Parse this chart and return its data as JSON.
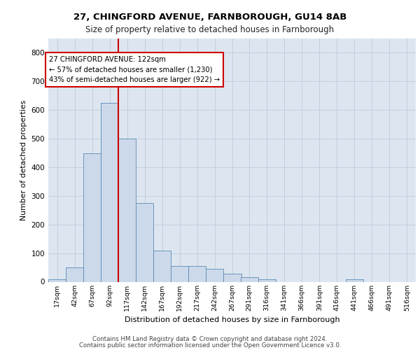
{
  "title1": "27, CHINGFORD AVENUE, FARNBOROUGH, GU14 8AB",
  "title2": "Size of property relative to detached houses in Farnborough",
  "xlabel": "Distribution of detached houses by size in Farnborough",
  "ylabel": "Number of detached properties",
  "footer1": "Contains HM Land Registry data © Crown copyright and database right 2024.",
  "footer2": "Contains public sector information licensed under the Open Government Licence v3.0.",
  "bar_color": "#ccd9ea",
  "bar_edgecolor": "#5a8ab5",
  "grid_color": "#c0cfe0",
  "background_color": "#dde6f0",
  "annotation_line1": "27 CHINGFORD AVENUE: 122sqm",
  "annotation_line2": "← 57% of detached houses are smaller (1,230)",
  "annotation_line3": "43% of semi-detached houses are larger (922) →",
  "annotation_box_color": "#ffffff",
  "annotation_box_edgecolor": "#cc0000",
  "vline_color": "#cc0000",
  "vline_x_bin": 4,
  "categories": [
    "17sqm",
    "42sqm",
    "67sqm",
    "92sqm",
    "117sqm",
    "142sqm",
    "167sqm",
    "192sqm",
    "217sqm",
    "242sqm",
    "267sqm",
    "291sqm",
    "316sqm",
    "341sqm",
    "366sqm",
    "391sqm",
    "416sqm",
    "441sqm",
    "466sqm",
    "491sqm",
    "516sqm"
  ],
  "bin_starts": [
    17,
    42,
    67,
    92,
    117,
    142,
    167,
    192,
    217,
    242,
    267,
    291,
    316,
    341,
    366,
    391,
    416,
    441,
    466,
    491,
    516
  ],
  "bin_width": 25,
  "values": [
    8,
    50,
    450,
    625,
    500,
    275,
    110,
    55,
    55,
    45,
    28,
    15,
    8,
    0,
    0,
    0,
    0,
    8,
    0,
    0,
    0
  ],
  "ylim": [
    0,
    850
  ],
  "yticks": [
    0,
    100,
    200,
    300,
    400,
    500,
    600,
    700,
    800
  ]
}
